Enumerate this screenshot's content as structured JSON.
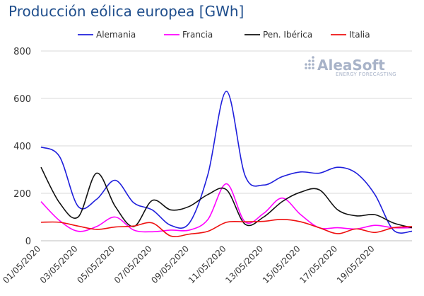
{
  "title": "Producción eólica europea [GWh]",
  "logo": {
    "name": "AleaSoft",
    "tagline": "ENERGY FORECASTING"
  },
  "chart_data": {
    "type": "line",
    "title": "Producción eólica europea [GWh]",
    "xlabel": "",
    "ylabel": "",
    "ylim": [
      0,
      800
    ],
    "yticks": [
      "0",
      "200",
      "400",
      "600",
      "800"
    ],
    "x": [
      "01/05/2020",
      "02/05/2020",
      "03/05/2020",
      "04/05/2020",
      "05/05/2020",
      "06/05/2020",
      "07/05/2020",
      "08/05/2020",
      "09/05/2020",
      "10/05/2020",
      "11/05/2020",
      "12/05/2020",
      "13/05/2020",
      "14/05/2020",
      "15/05/2020",
      "16/05/2020",
      "17/05/2020",
      "18/05/2020",
      "19/05/2020",
      "20/05/2020",
      "21/05/2020"
    ],
    "xtick_labels": [
      "01/05/2020",
      "03/05/2020",
      "05/05/2020",
      "07/05/2020",
      "09/05/2020",
      "11/05/2020",
      "13/05/2020",
      "15/05/2020",
      "17/05/2020",
      "19/05/2020"
    ],
    "grid": true,
    "legend_position": "top",
    "series": [
      {
        "name": "Alemania",
        "color": "#1f1fdc",
        "values": [
          395,
          355,
          145,
          175,
          255,
          160,
          130,
          65,
          75,
          280,
          630,
          275,
          235,
          270,
          290,
          285,
          310,
          285,
          195,
          45,
          40
        ]
      },
      {
        "name": "Francia",
        "color": "#ff00ff",
        "values": [
          165,
          85,
          40,
          60,
          100,
          45,
          38,
          45,
          45,
          90,
          240,
          80,
          115,
          180,
          110,
          55,
          55,
          50,
          65,
          55,
          55
        ]
      },
      {
        "name": "Pen. Ibérica",
        "color": "#111111",
        "values": [
          310,
          160,
          100,
          285,
          145,
          60,
          170,
          130,
          145,
          195,
          215,
          70,
          100,
          165,
          205,
          215,
          130,
          105,
          110,
          75,
          55
        ]
      },
      {
        "name": "Italia",
        "color": "#ee1111",
        "values": [
          78,
          78,
          62,
          48,
          58,
          62,
          75,
          20,
          28,
          40,
          78,
          80,
          82,
          90,
          80,
          55,
          30,
          50,
          35,
          55,
          60
        ]
      }
    ]
  }
}
